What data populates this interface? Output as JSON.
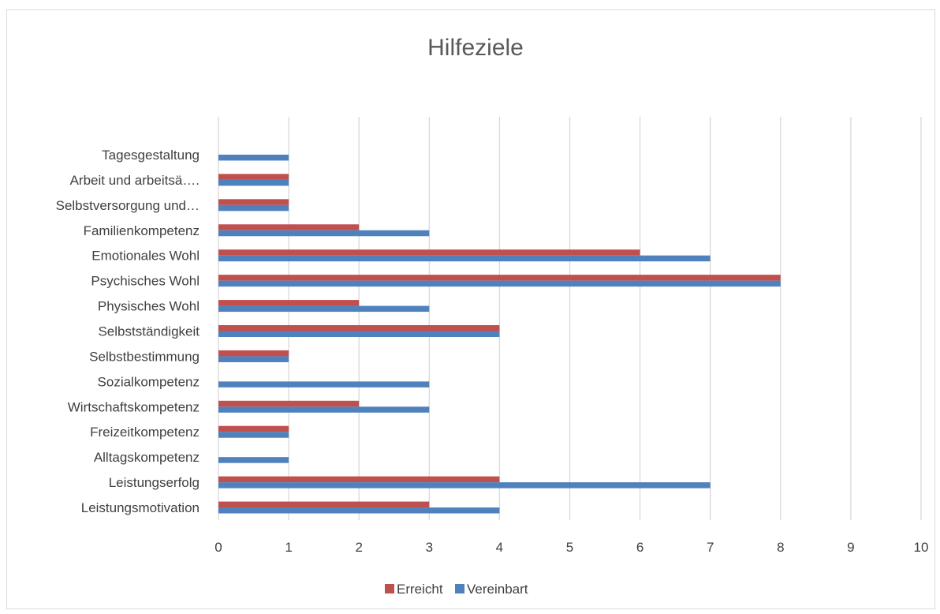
{
  "chart_data": {
    "type": "bar",
    "orientation": "horizontal",
    "title": "Hilfeziele",
    "xlabel": "",
    "ylabel": "",
    "xlim": [
      0,
      10
    ],
    "x_ticks": [
      "0",
      "1",
      "2",
      "3",
      "4",
      "5",
      "6",
      "7",
      "8",
      "9",
      "10"
    ],
    "grid": true,
    "legend_position": "bottom",
    "categories": [
      "Leistungsmotivation",
      "Leistungserfolg",
      "Alltagskompetenz",
      "Freizeitkompetenz",
      "Wirtschaftskompetenz",
      "Sozialkompetenz",
      "Selbstbestimmung",
      "Selbstständigkeit",
      "Physisches Wohl",
      "Psychisches Wohl",
      "Emotionales Wohl",
      "Familienkompetenz",
      "Selbstversorgung und…",
      "Arbeit und arbeitsä….",
      "Tagesgestaltung"
    ],
    "series": [
      {
        "name": "Erreicht",
        "color": "#c0504d",
        "values": [
          3,
          4,
          0,
          1,
          2,
          0,
          1,
          4,
          2,
          8,
          6,
          2,
          1,
          1,
          0
        ]
      },
      {
        "name": "Vereinbart",
        "color": "#4f81bd",
        "values": [
          4,
          7,
          1,
          1,
          3,
          3,
          1,
          4,
          3,
          8,
          7,
          3,
          1,
          1,
          1
        ]
      }
    ]
  }
}
